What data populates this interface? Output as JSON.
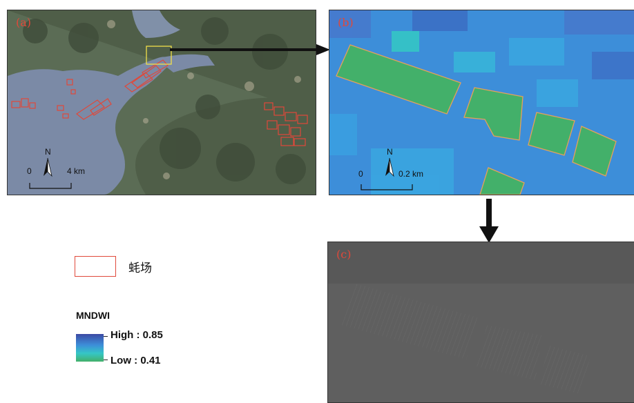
{
  "panels": {
    "a": {
      "label": "(a)",
      "scale": {
        "zero": "0",
        "dist": "4 km",
        "north": "N"
      }
    },
    "b": {
      "label": "(b)",
      "scale": {
        "zero": "0",
        "dist": "0.2 km",
        "north": "N"
      }
    },
    "c": {
      "label": "(c)"
    }
  },
  "legend": {
    "farm_label": "蚝场",
    "index_title": "MNDWI",
    "high": "High : 0.85",
    "low": "Low : 0.41",
    "colors": {
      "high": "#3c4aa4",
      "mid": "#35c6c6",
      "low": "#43b06a",
      "outline": "#e0483a"
    }
  }
}
